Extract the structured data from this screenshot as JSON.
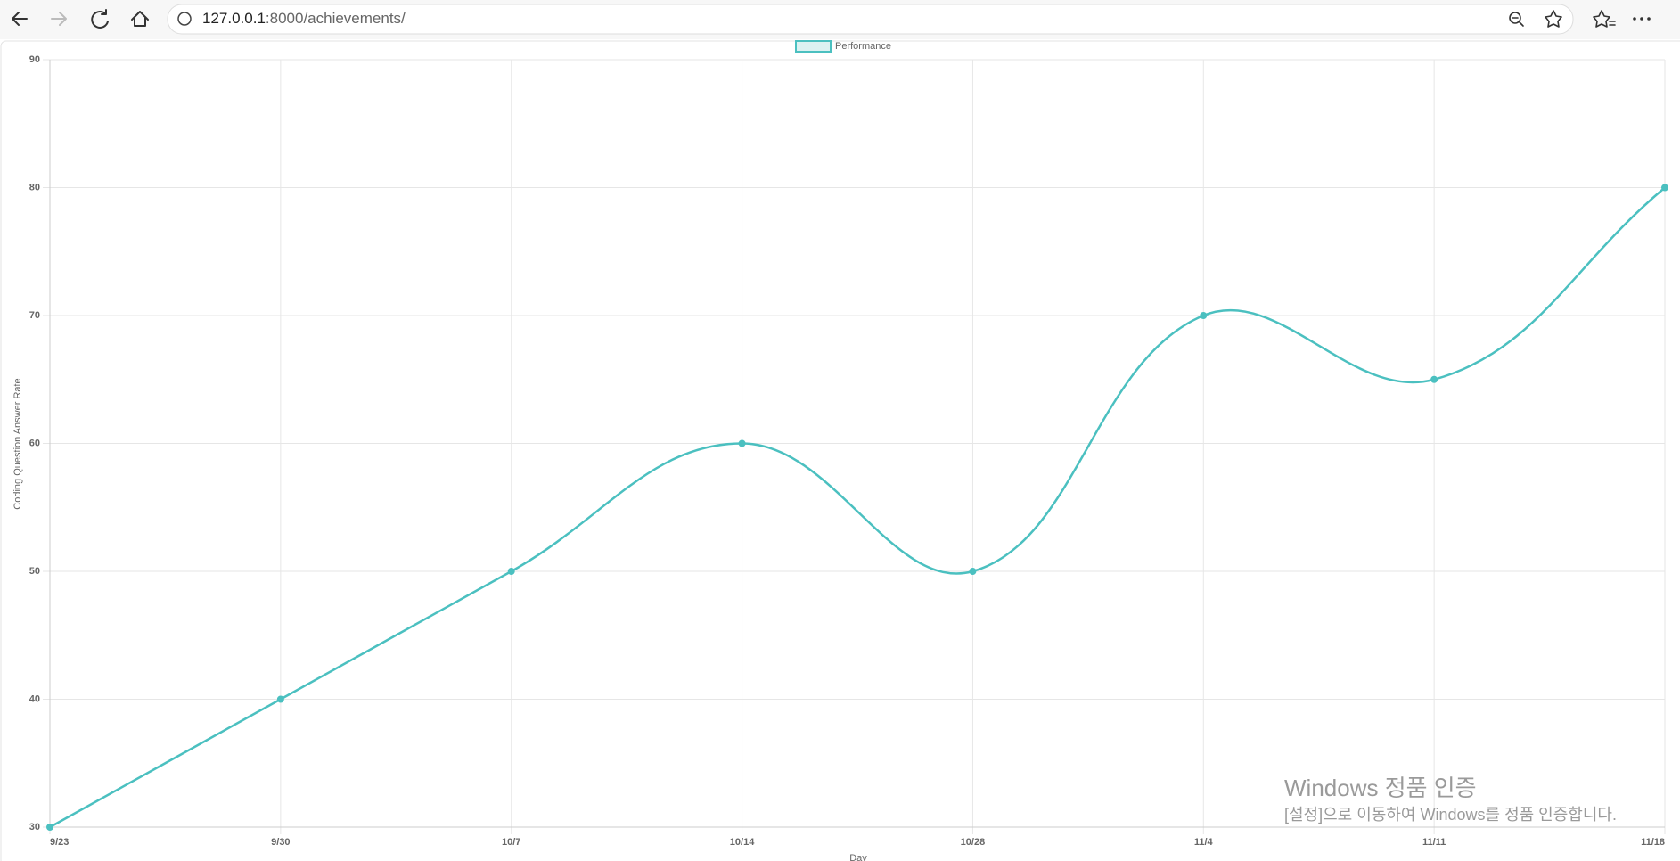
{
  "browser": {
    "url_host": "127.0.0.1",
    "url_rest": ":8000/achievements/"
  },
  "watermark": {
    "title": "Windows 정품 인증",
    "text": "[설정]으로 이동하여 Windows를 정품 인증합니다."
  },
  "chart_data": {
    "type": "line",
    "x_label": "Day",
    "y_label": "Coding Question Answer Rate",
    "categories": [
      "9/23",
      "9/30",
      "10/7",
      "10/14",
      "10/28",
      "11/4",
      "11/11",
      "11/18"
    ],
    "series": [
      {
        "name": "Performance",
        "color": "#4bc0c0",
        "values": [
          30,
          40,
          50,
          60,
          50,
          70,
          65,
          80
        ]
      }
    ],
    "ylim": [
      30,
      90
    ],
    "yticks": [
      30,
      40,
      50,
      60,
      70,
      80,
      90
    ],
    "grid": true,
    "legend": "top"
  }
}
